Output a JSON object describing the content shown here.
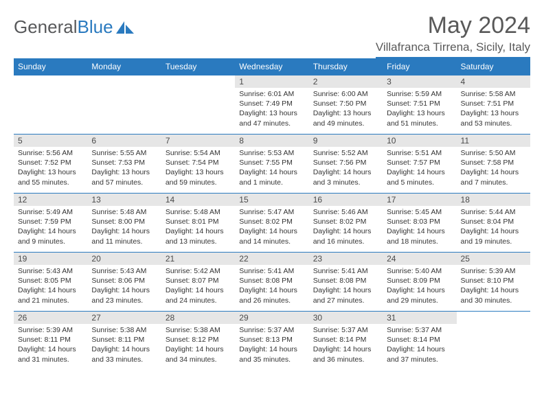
{
  "brand": {
    "part1": "General",
    "part2": "Blue"
  },
  "title": "May 2024",
  "location": "Villafranca Tirrena, Sicily, Italy",
  "weekdays": [
    "Sunday",
    "Monday",
    "Tuesday",
    "Wednesday",
    "Thursday",
    "Friday",
    "Saturday"
  ],
  "colors": {
    "accent": "#2a7abf",
    "header_text": "#ffffff",
    "day_head_bg": "#e6e6e6",
    "text_gray": "#595959",
    "body_text": "#333333",
    "page_bg": "#ffffff"
  },
  "blank_cells_before": 3,
  "blank_cells_after": 1,
  "days": [
    {
      "n": "1",
      "sunrise": "6:01 AM",
      "sunset": "7:49 PM",
      "daylight": "13 hours and 47 minutes."
    },
    {
      "n": "2",
      "sunrise": "6:00 AM",
      "sunset": "7:50 PM",
      "daylight": "13 hours and 49 minutes."
    },
    {
      "n": "3",
      "sunrise": "5:59 AM",
      "sunset": "7:51 PM",
      "daylight": "13 hours and 51 minutes."
    },
    {
      "n": "4",
      "sunrise": "5:58 AM",
      "sunset": "7:51 PM",
      "daylight": "13 hours and 53 minutes."
    },
    {
      "n": "5",
      "sunrise": "5:56 AM",
      "sunset": "7:52 PM",
      "daylight": "13 hours and 55 minutes."
    },
    {
      "n": "6",
      "sunrise": "5:55 AM",
      "sunset": "7:53 PM",
      "daylight": "13 hours and 57 minutes."
    },
    {
      "n": "7",
      "sunrise": "5:54 AM",
      "sunset": "7:54 PM",
      "daylight": "13 hours and 59 minutes."
    },
    {
      "n": "8",
      "sunrise": "5:53 AM",
      "sunset": "7:55 PM",
      "daylight": "14 hours and 1 minute."
    },
    {
      "n": "9",
      "sunrise": "5:52 AM",
      "sunset": "7:56 PM",
      "daylight": "14 hours and 3 minutes."
    },
    {
      "n": "10",
      "sunrise": "5:51 AM",
      "sunset": "7:57 PM",
      "daylight": "14 hours and 5 minutes."
    },
    {
      "n": "11",
      "sunrise": "5:50 AM",
      "sunset": "7:58 PM",
      "daylight": "14 hours and 7 minutes."
    },
    {
      "n": "12",
      "sunrise": "5:49 AM",
      "sunset": "7:59 PM",
      "daylight": "14 hours and 9 minutes."
    },
    {
      "n": "13",
      "sunrise": "5:48 AM",
      "sunset": "8:00 PM",
      "daylight": "14 hours and 11 minutes."
    },
    {
      "n": "14",
      "sunrise": "5:48 AM",
      "sunset": "8:01 PM",
      "daylight": "14 hours and 13 minutes."
    },
    {
      "n": "15",
      "sunrise": "5:47 AM",
      "sunset": "8:02 PM",
      "daylight": "14 hours and 14 minutes."
    },
    {
      "n": "16",
      "sunrise": "5:46 AM",
      "sunset": "8:02 PM",
      "daylight": "14 hours and 16 minutes."
    },
    {
      "n": "17",
      "sunrise": "5:45 AM",
      "sunset": "8:03 PM",
      "daylight": "14 hours and 18 minutes."
    },
    {
      "n": "18",
      "sunrise": "5:44 AM",
      "sunset": "8:04 PM",
      "daylight": "14 hours and 19 minutes."
    },
    {
      "n": "19",
      "sunrise": "5:43 AM",
      "sunset": "8:05 PM",
      "daylight": "14 hours and 21 minutes."
    },
    {
      "n": "20",
      "sunrise": "5:43 AM",
      "sunset": "8:06 PM",
      "daylight": "14 hours and 23 minutes."
    },
    {
      "n": "21",
      "sunrise": "5:42 AM",
      "sunset": "8:07 PM",
      "daylight": "14 hours and 24 minutes."
    },
    {
      "n": "22",
      "sunrise": "5:41 AM",
      "sunset": "8:08 PM",
      "daylight": "14 hours and 26 minutes."
    },
    {
      "n": "23",
      "sunrise": "5:41 AM",
      "sunset": "8:08 PM",
      "daylight": "14 hours and 27 minutes."
    },
    {
      "n": "24",
      "sunrise": "5:40 AM",
      "sunset": "8:09 PM",
      "daylight": "14 hours and 29 minutes."
    },
    {
      "n": "25",
      "sunrise": "5:39 AM",
      "sunset": "8:10 PM",
      "daylight": "14 hours and 30 minutes."
    },
    {
      "n": "26",
      "sunrise": "5:39 AM",
      "sunset": "8:11 PM",
      "daylight": "14 hours and 31 minutes."
    },
    {
      "n": "27",
      "sunrise": "5:38 AM",
      "sunset": "8:11 PM",
      "daylight": "14 hours and 33 minutes."
    },
    {
      "n": "28",
      "sunrise": "5:38 AM",
      "sunset": "8:12 PM",
      "daylight": "14 hours and 34 minutes."
    },
    {
      "n": "29",
      "sunrise": "5:37 AM",
      "sunset": "8:13 PM",
      "daylight": "14 hours and 35 minutes."
    },
    {
      "n": "30",
      "sunrise": "5:37 AM",
      "sunset": "8:14 PM",
      "daylight": "14 hours and 36 minutes."
    },
    {
      "n": "31",
      "sunrise": "5:37 AM",
      "sunset": "8:14 PM",
      "daylight": "14 hours and 37 minutes."
    }
  ],
  "labels": {
    "sunrise_prefix": "Sunrise: ",
    "sunset_prefix": "Sunset: ",
    "daylight_prefix": "Daylight: "
  }
}
